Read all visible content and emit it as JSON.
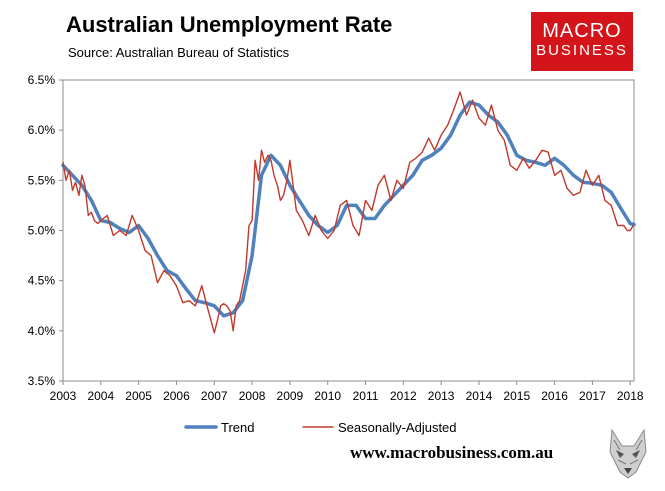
{
  "header": {
    "title": "Australian Unemployment Rate",
    "subtitle": "Source: Australian Bureau of Statistics"
  },
  "logo": {
    "line1": "MACRO",
    "line2": "BUSINESS",
    "color": "#d3151b"
  },
  "footer": {
    "url": "www.macrobusiness.com.au",
    "mascot_icon": "wolf-head-icon"
  },
  "chart_data": {
    "type": "line",
    "title": "Australian Unemployment Rate",
    "xlabel": "",
    "ylabel": "",
    "xlim": [
      2003,
      2018.1
    ],
    "ylim": [
      3.5,
      6.5
    ],
    "grid": false,
    "legend_position": "bottom",
    "x_ticks": [
      2003,
      2004,
      2005,
      2006,
      2007,
      2008,
      2009,
      2010,
      2011,
      2012,
      2013,
      2014,
      2015,
      2016,
      2017,
      2018
    ],
    "x_tick_labels": [
      "2003",
      "2004",
      "2005",
      "2006",
      "2007",
      "2008",
      "2009",
      "2010",
      "2011",
      "2012",
      "2013",
      "2014",
      "2015",
      "2016",
      "2017",
      "2018"
    ],
    "y_ticks": [
      3.5,
      4.0,
      4.5,
      5.0,
      5.5,
      6.0,
      6.5
    ],
    "y_tick_labels": [
      "3.5%",
      "4.0%",
      "4.5%",
      "5.0%",
      "5.5%",
      "6.0%",
      "6.5%"
    ],
    "series": [
      {
        "name": "Trend",
        "color": "#4f81bd",
        "x": [
          2003.0,
          2003.25,
          2003.5,
          2003.75,
          2004.0,
          2004.25,
          2004.5,
          2004.75,
          2005.0,
          2005.25,
          2005.5,
          2005.75,
          2006.0,
          2006.25,
          2006.5,
          2006.75,
          2007.0,
          2007.25,
          2007.5,
          2007.75,
          2008.0,
          2008.25,
          2008.5,
          2008.75,
          2009.0,
          2009.25,
          2009.5,
          2009.75,
          2010.0,
          2010.25,
          2010.5,
          2010.75,
          2011.0,
          2011.25,
          2011.5,
          2011.75,
          2012.0,
          2012.25,
          2012.5,
          2012.75,
          2013.0,
          2013.25,
          2013.5,
          2013.75,
          2014.0,
          2014.25,
          2014.5,
          2014.75,
          2015.0,
          2015.25,
          2015.5,
          2015.75,
          2016.0,
          2016.25,
          2016.5,
          2016.75,
          2017.0,
          2017.25,
          2017.5,
          2017.75,
          2018.0,
          2018.1
        ],
        "values": [
          5.65,
          5.55,
          5.45,
          5.3,
          5.1,
          5.08,
          5.02,
          4.98,
          5.05,
          4.92,
          4.75,
          4.6,
          4.55,
          4.42,
          4.3,
          4.28,
          4.25,
          4.15,
          4.18,
          4.3,
          4.75,
          5.55,
          5.75,
          5.65,
          5.45,
          5.3,
          5.15,
          5.05,
          4.98,
          5.05,
          5.25,
          5.25,
          5.12,
          5.12,
          5.25,
          5.35,
          5.45,
          5.55,
          5.7,
          5.75,
          5.82,
          5.95,
          6.15,
          6.28,
          6.25,
          6.15,
          6.08,
          5.95,
          5.75,
          5.7,
          5.68,
          5.65,
          5.72,
          5.65,
          5.55,
          5.48,
          5.47,
          5.45,
          5.38,
          5.22,
          5.07,
          5.06
        ]
      },
      {
        "name": "Seasonally-Adjusted",
        "color": "#c0392b",
        "x": [
          2003.0,
          2003.08,
          2003.17,
          2003.25,
          2003.33,
          2003.42,
          2003.5,
          2003.58,
          2003.67,
          2003.75,
          2003.83,
          2003.92,
          2004.0,
          2004.17,
          2004.33,
          2004.5,
          2004.67,
          2004.83,
          2005.0,
          2005.17,
          2005.33,
          2005.5,
          2005.67,
          2005.83,
          2006.0,
          2006.17,
          2006.33,
          2006.5,
          2006.67,
          2006.83,
          2007.0,
          2007.08,
          2007.17,
          2007.25,
          2007.33,
          2007.42,
          2007.5,
          2007.58,
          2007.67,
          2007.75,
          2007.83,
          2007.92,
          2008.0,
          2008.08,
          2008.17,
          2008.25,
          2008.33,
          2008.42,
          2008.5,
          2008.58,
          2008.67,
          2008.75,
          2008.83,
          2008.92,
          2009.0,
          2009.17,
          2009.33,
          2009.5,
          2009.67,
          2009.83,
          2010.0,
          2010.17,
          2010.33,
          2010.5,
          2010.67,
          2010.83,
          2011.0,
          2011.17,
          2011.33,
          2011.5,
          2011.67,
          2011.83,
          2012.0,
          2012.17,
          2012.33,
          2012.5,
          2012.67,
          2012.83,
          2013.0,
          2013.17,
          2013.33,
          2013.5,
          2013.67,
          2013.83,
          2014.0,
          2014.17,
          2014.33,
          2014.5,
          2014.67,
          2014.83,
          2015.0,
          2015.17,
          2015.33,
          2015.5,
          2015.67,
          2015.83,
          2016.0,
          2016.17,
          2016.33,
          2016.5,
          2016.67,
          2016.83,
          2017.0,
          2017.17,
          2017.33,
          2017.5,
          2017.67,
          2017.83,
          2017.92,
          2018.0,
          2018.08
        ],
        "values": [
          5.68,
          5.5,
          5.6,
          5.4,
          5.48,
          5.35,
          5.55,
          5.45,
          5.15,
          5.18,
          5.1,
          5.07,
          5.1,
          5.15,
          4.95,
          5.0,
          4.95,
          5.15,
          5.0,
          4.8,
          4.75,
          4.48,
          4.6,
          4.55,
          4.45,
          4.28,
          4.3,
          4.25,
          4.45,
          4.22,
          3.98,
          4.1,
          4.25,
          4.27,
          4.25,
          4.2,
          4.0,
          4.25,
          4.3,
          4.45,
          4.6,
          5.05,
          5.1,
          5.7,
          5.5,
          5.8,
          5.68,
          5.75,
          5.7,
          5.55,
          5.45,
          5.3,
          5.35,
          5.5,
          5.7,
          5.2,
          5.1,
          4.95,
          5.15,
          5.0,
          4.92,
          5.0,
          5.25,
          5.3,
          5.05,
          4.95,
          5.3,
          5.2,
          5.45,
          5.55,
          5.3,
          5.5,
          5.42,
          5.68,
          5.72,
          5.78,
          5.92,
          5.8,
          5.95,
          6.05,
          6.2,
          6.38,
          6.15,
          6.3,
          6.12,
          6.05,
          6.25,
          6.0,
          5.9,
          5.65,
          5.6,
          5.72,
          5.62,
          5.7,
          5.8,
          5.78,
          5.55,
          5.6,
          5.42,
          5.35,
          5.38,
          5.6,
          5.45,
          5.55,
          5.3,
          5.25,
          5.05,
          5.05,
          5.0,
          5.0,
          5.05
        ]
      }
    ]
  }
}
